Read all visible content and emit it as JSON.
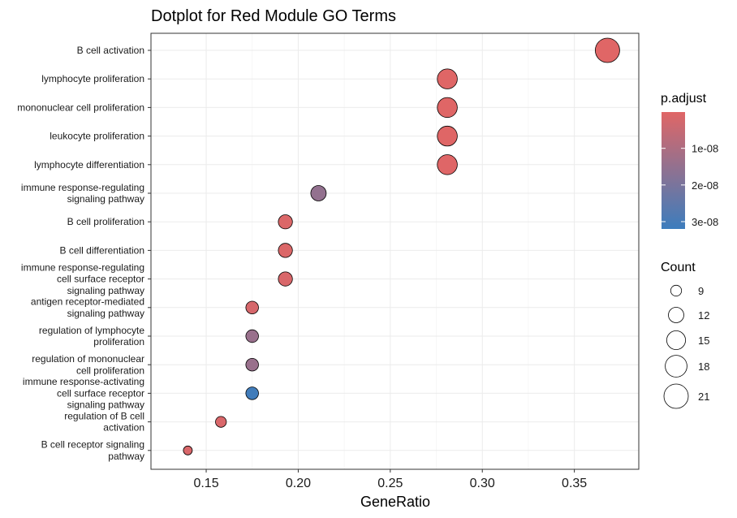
{
  "chart_data": {
    "type": "scatter",
    "title": "Dotplot for Red Module GO Terms",
    "xlabel": "GeneRatio",
    "ylabel": "",
    "xlim": [
      0.12,
      0.385
    ],
    "x_ticks": [
      0.15,
      0.2,
      0.25,
      0.3,
      0.35
    ],
    "x_tick_labels": [
      "0.15",
      "0.20",
      "0.25",
      "0.30",
      "0.35"
    ],
    "grid": true,
    "legend_position": "right",
    "categories": [
      "B cell activation",
      "lymphocyte proliferation",
      "mononuclear cell proliferation",
      "leukocyte proliferation",
      "lymphocyte differentiation",
      "immune response-regulating\nsignaling pathway",
      "B cell proliferation",
      "B cell differentiation",
      "immune response-regulating\ncell surface receptor\nsignaling pathway",
      "antigen receptor-mediated\nsignaling pathway",
      "regulation of lymphocyte\nproliferation",
      "regulation of mononuclear\ncell proliferation",
      "immune response-activating\ncell surface receptor\nsignaling pathway",
      "regulation of B cell\nactivation",
      "B cell receptor signaling\npathway"
    ],
    "points": [
      {
        "term": "B cell activation",
        "gene_ratio": 0.368,
        "count": 21,
        "p_adjust": 1e-10
      },
      {
        "term": "lymphocyte proliferation",
        "gene_ratio": 0.281,
        "count": 16,
        "p_adjust": 2e-10
      },
      {
        "term": "mononuclear cell proliferation",
        "gene_ratio": 0.281,
        "count": 16,
        "p_adjust": 2e-10
      },
      {
        "term": "leukocyte proliferation",
        "gene_ratio": 0.281,
        "count": 16,
        "p_adjust": 2e-10
      },
      {
        "term": "lymphocyte differentiation",
        "gene_ratio": 0.281,
        "count": 16,
        "p_adjust": 3e-10
      },
      {
        "term": "immune response-regulating signaling pathway",
        "gene_ratio": 0.211,
        "count": 12,
        "p_adjust": 1.5e-08
      },
      {
        "term": "B cell proliferation",
        "gene_ratio": 0.193,
        "count": 11,
        "p_adjust": 1e-09
      },
      {
        "term": "B cell differentiation",
        "gene_ratio": 0.193,
        "count": 11,
        "p_adjust": 1e-09
      },
      {
        "term": "immune response-regulating cell surface receptor signaling pathway",
        "gene_ratio": 0.193,
        "count": 11,
        "p_adjust": 1.5e-09
      },
      {
        "term": "antigen receptor-mediated signaling pathway",
        "gene_ratio": 0.175,
        "count": 10,
        "p_adjust": 2e-09
      },
      {
        "term": "regulation of lymphocyte proliferation",
        "gene_ratio": 0.175,
        "count": 10,
        "p_adjust": 1.4e-08
      },
      {
        "term": "regulation of mononuclear cell proliferation",
        "gene_ratio": 0.175,
        "count": 10,
        "p_adjust": 1.4e-08
      },
      {
        "term": "immune response-activating cell surface receptor signaling pathway",
        "gene_ratio": 0.175,
        "count": 10,
        "p_adjust": 3.1e-08
      },
      {
        "term": "regulation of B cell activation",
        "gene_ratio": 0.158,
        "count": 9,
        "p_adjust": 1.5e-09
      },
      {
        "term": "B cell receptor signaling pathway",
        "gene_ratio": 0.14,
        "count": 8,
        "p_adjust": 1.5e-09
      }
    ],
    "color_legend": {
      "title": "p.adjust",
      "range": [
        1e-10,
        3.2e-08
      ],
      "ticks": [
        1e-08,
        2e-08,
        3e-08
      ],
      "tick_labels": [
        "1e-08",
        "2e-08",
        "3e-08"
      ],
      "low_color": "#e06666",
      "high_color": "#3c7dbd"
    },
    "size_legend": {
      "title": "Count",
      "values": [
        9,
        12,
        15,
        18,
        21
      ],
      "labels": [
        "9",
        "12",
        "15",
        "18",
        "21"
      ]
    }
  }
}
